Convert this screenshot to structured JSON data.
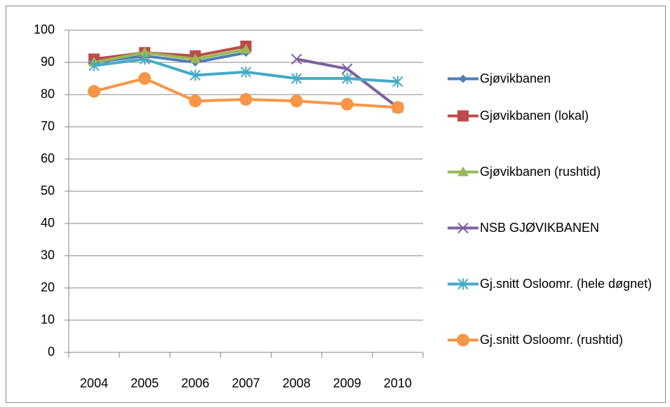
{
  "chart_data": {
    "type": "line",
    "categories": [
      "2004",
      "2005",
      "2006",
      "2007",
      "2008",
      "2009",
      "2010"
    ],
    "ylim": [
      0,
      100
    ],
    "yticks": [
      0,
      10,
      20,
      30,
      40,
      50,
      60,
      70,
      80,
      90,
      100
    ],
    "grid": true,
    "legend": "right",
    "series": [
      {
        "name": "Gjøvikbanen",
        "color": "#4a7ebb",
        "marker": "diamond",
        "values": [
          90,
          92,
          90,
          93,
          null,
          null,
          null
        ]
      },
      {
        "name": "Gjøvikbanen (lokal)",
        "color": "#be4b48",
        "marker": "square",
        "values": [
          91,
          93,
          92,
          95,
          null,
          null,
          null
        ]
      },
      {
        "name": "Gjøvikbanen (rushtid)",
        "color": "#98b954",
        "marker": "triangle",
        "values": [
          90,
          93,
          91,
          94,
          null,
          null,
          null
        ]
      },
      {
        "name": "NSB GJØVIKBANEN",
        "color": "#7d60a0",
        "marker": "x",
        "values": [
          null,
          null,
          null,
          null,
          91,
          88,
          76
        ]
      },
      {
        "name": "Gj.snitt Osloomr. (hele døgnet)",
        "color": "#46aac5",
        "marker": "star",
        "values": [
          89,
          91,
          86,
          87,
          85,
          85,
          84
        ]
      },
      {
        "name": "Gj.snitt Osloomr. (rushtid)",
        "color": "#f79646",
        "marker": "circle",
        "values": [
          81,
          85,
          78,
          78.5,
          78,
          77,
          76
        ]
      }
    ]
  }
}
